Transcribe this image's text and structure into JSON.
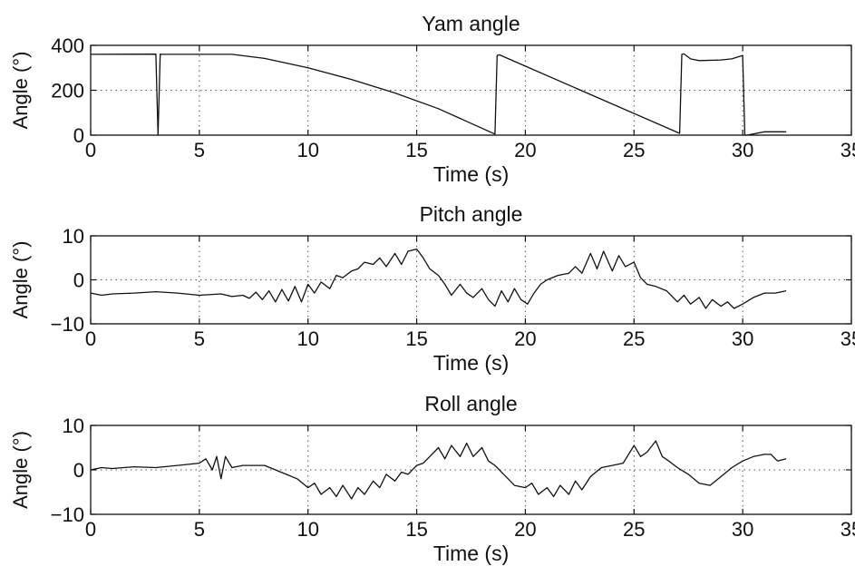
{
  "chart_data": [
    {
      "type": "line",
      "title": "Yam angle",
      "xlabel": "Time (s)",
      "ylabel": "Angle (°)",
      "xlim": [
        0,
        35
      ],
      "ylim": [
        0,
        400
      ],
      "xticks": [
        0,
        5,
        10,
        15,
        20,
        25,
        30,
        35
      ],
      "yticks": [
        0,
        200,
        400
      ],
      "grid": true,
      "series": [
        {
          "x": [
            0,
            3.0,
            3.1,
            3.2,
            3.3,
            6.5,
            8,
            10,
            12,
            14,
            16,
            18.6,
            18.7,
            18.8,
            27.1,
            27.2,
            27.3,
            27.6,
            28,
            29,
            29.5,
            30.0,
            30.1,
            30.2,
            31,
            32
          ],
          "y": [
            360,
            361,
            0,
            361,
            360,
            360,
            342,
            300,
            248,
            188,
            118,
            5,
            355,
            358,
            8,
            360,
            362,
            340,
            332,
            335,
            340,
            355,
            0,
            0,
            15,
            15
          ]
        }
      ]
    },
    {
      "type": "line",
      "title": "Pitch angle",
      "xlabel": "Time (s)",
      "ylabel": "Angle (°)",
      "xlim": [
        0,
        35
      ],
      "ylim": [
        -10,
        10
      ],
      "xticks": [
        0,
        5,
        10,
        15,
        20,
        25,
        30,
        35
      ],
      "yticks": [
        -10,
        0,
        10
      ],
      "grid": true,
      "series": [
        {
          "x": [
            0,
            0.5,
            1,
            2,
            3,
            4,
            5,
            6,
            6.5,
            7,
            7.3,
            7.6,
            7.9,
            8.2,
            8.5,
            8.8,
            9.1,
            9.4,
            9.7,
            10,
            10.3,
            10.6,
            11,
            11.3,
            11.6,
            12,
            12.3,
            12.6,
            13,
            13.3,
            13.6,
            14,
            14.3,
            14.6,
            15,
            15.3,
            15.6,
            16,
            16.3,
            16.6,
            17,
            17.3,
            17.6,
            18,
            18.3,
            18.6,
            18.9,
            19.2,
            19.5,
            19.8,
            20.1,
            20.4,
            20.7,
            21,
            21.5,
            22,
            22.3,
            22.6,
            23,
            23.3,
            23.6,
            24,
            24.3,
            24.6,
            25,
            25.3,
            25.6,
            26,
            26.5,
            27,
            27.3,
            27.6,
            28,
            28.3,
            28.6,
            29,
            29.3,
            29.6,
            30,
            30.5,
            31,
            31.5,
            32
          ],
          "y": [
            -3,
            -3.5,
            -3.2,
            -3,
            -2.7,
            -3,
            -3.5,
            -3.2,
            -3.8,
            -3.5,
            -4.2,
            -2.8,
            -4.5,
            -2.5,
            -5,
            -2.2,
            -4.8,
            -1.5,
            -5,
            -1,
            -3,
            -0.5,
            -2,
            1,
            0.5,
            2,
            2.5,
            4,
            3.5,
            5,
            3,
            6,
            3.5,
            6.5,
            7,
            5,
            2.5,
            1,
            -1,
            -3.5,
            -1,
            -3,
            -4,
            -2,
            -4.5,
            -6,
            -2.5,
            -5,
            -2,
            -4.5,
            -5.5,
            -3,
            -1,
            0,
            1,
            1.5,
            3,
            1.5,
            6,
            2.5,
            6.5,
            2,
            5.5,
            3,
            4,
            0.5,
            -1,
            -1.5,
            -2.5,
            -5,
            -3.5,
            -5.5,
            -4,
            -6.5,
            -4.5,
            -6,
            -5,
            -6.5,
            -5.5,
            -4,
            -3,
            -3,
            -2.5
          ]
        }
      ]
    },
    {
      "type": "line",
      "title": "Roll angle",
      "xlabel": "Time (s)",
      "ylabel": "Angle (°)",
      "xlim": [
        0,
        35
      ],
      "ylim": [
        -10,
        10
      ],
      "xticks": [
        0,
        5,
        10,
        15,
        20,
        25,
        30,
        35
      ],
      "yticks": [
        -10,
        0,
        10
      ],
      "grid": true,
      "series": [
        {
          "x": [
            0,
            0.5,
            1,
            2,
            3,
            4,
            5,
            5.3,
            5.6,
            5.8,
            6,
            6.2,
            6.5,
            7,
            8,
            8.5,
            9,
            9.5,
            10,
            10.3,
            10.6,
            11,
            11.3,
            11.6,
            12,
            12.3,
            12.6,
            13,
            13.3,
            13.6,
            14,
            14.3,
            14.6,
            15,
            15.3,
            15.6,
            16,
            16.3,
            16.6,
            17,
            17.3,
            17.6,
            18,
            18.3,
            18.6,
            19,
            19.5,
            20,
            20.3,
            20.6,
            21,
            21.3,
            21.6,
            22,
            22.3,
            22.6,
            23,
            23.5,
            24,
            24.5,
            25,
            25.3,
            25.6,
            26,
            26.3,
            26.6,
            27,
            27.5,
            28,
            28.5,
            29,
            29.5,
            30,
            30.5,
            31,
            31.3,
            31.6,
            32
          ],
          "y": [
            0,
            0.5,
            0.3,
            0.7,
            0.5,
            1,
            1.5,
            2.5,
            0,
            3,
            -2,
            3,
            0.5,
            1,
            1,
            0,
            -1,
            -2,
            -4,
            -3,
            -5.5,
            -4,
            -6,
            -3.5,
            -6.5,
            -4,
            -5.5,
            -2.5,
            -4,
            -1,
            -2.5,
            -0.5,
            -1,
            1,
            1.5,
            3,
            5,
            2.5,
            5.5,
            3,
            6,
            3,
            5,
            2,
            1,
            -1,
            -3.5,
            -4,
            -3,
            -5.5,
            -4,
            -6,
            -3.5,
            -5.5,
            -2.5,
            -4.5,
            -1.5,
            0.5,
            1,
            1.5,
            5.5,
            3,
            4,
            6.5,
            3,
            2,
            0.5,
            -1,
            -3,
            -3.5,
            -1.5,
            0.5,
            2,
            3,
            3.5,
            3.5,
            2,
            2.5
          ]
        }
      ]
    }
  ]
}
